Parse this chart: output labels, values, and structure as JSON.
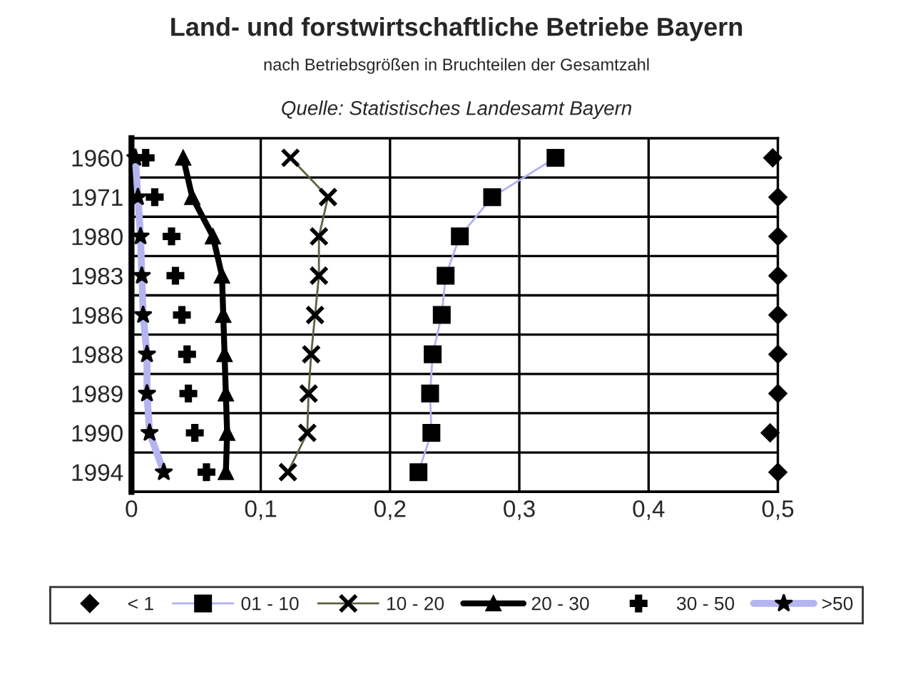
{
  "chart_data": {
    "type": "line",
    "orientation": "horizontal",
    "title": "Land- und forstwirtschaftliche Betriebe Bayern",
    "subtitle": "nach Betriebsgrößen in Bruchteilen der Gesamtzahl",
    "annotations": [
      "Quelle: Statistisches Landesamt Bayern"
    ],
    "categories": [
      "1960",
      "1971",
      "1980",
      "1983",
      "1986",
      "1988",
      "1989",
      "1990",
      "1994"
    ],
    "xlim": [
      0,
      0.5
    ],
    "xticks": [
      {
        "value": 0,
        "label": "0"
      },
      {
        "value": 0.1,
        "label": "0,1"
      },
      {
        "value": 0.2,
        "label": "0,2"
      },
      {
        "value": 0.3,
        "label": "0,3"
      },
      {
        "value": 0.4,
        "label": "0,4"
      },
      {
        "value": 0.5,
        "label": "0,5"
      }
    ],
    "grid": true,
    "legend": "bottom",
    "series": [
      {
        "name": "< 1",
        "type": "scatter",
        "marker": "diamond",
        "color": "#000000",
        "values": [
          0.496,
          0.5,
          0.5,
          0.5,
          0.5,
          0.5,
          0.5,
          0.494,
          0.5
        ]
      },
      {
        "name": "01 - 10",
        "marker": "square",
        "line_style": "solid",
        "color": "#b0b0f0",
        "values": [
          0.328,
          0.279,
          0.254,
          0.243,
          0.24,
          0.233,
          0.231,
          0.232,
          0.222
        ]
      },
      {
        "name": "10 - 20",
        "marker": "x",
        "line_style": "solid",
        "color": "#606040",
        "values": [
          0.123,
          0.152,
          0.145,
          0.145,
          0.142,
          0.139,
          0.137,
          0.136,
          0.121
        ]
      },
      {
        "name": "20 - 30",
        "marker": "triangle",
        "line_style": "solid",
        "color": "#000000",
        "values": [
          0.04,
          0.047,
          0.063,
          0.07,
          0.071,
          0.072,
          0.073,
          0.074,
          0.073
        ]
      },
      {
        "name": "30 - 50",
        "type": "scatter",
        "marker": "cross",
        "color": "#000000",
        "values": [
          0.011,
          0.018,
          0.031,
          0.034,
          0.039,
          0.043,
          0.044,
          0.049,
          0.058
        ]
      },
      {
        "name": ">50",
        "marker": "star",
        "line_style": "solid",
        "color": "#b4b4f0",
        "values": [
          0.003,
          0.005,
          0.007,
          0.008,
          0.009,
          0.012,
          0.012,
          0.014,
          0.025
        ]
      }
    ]
  }
}
